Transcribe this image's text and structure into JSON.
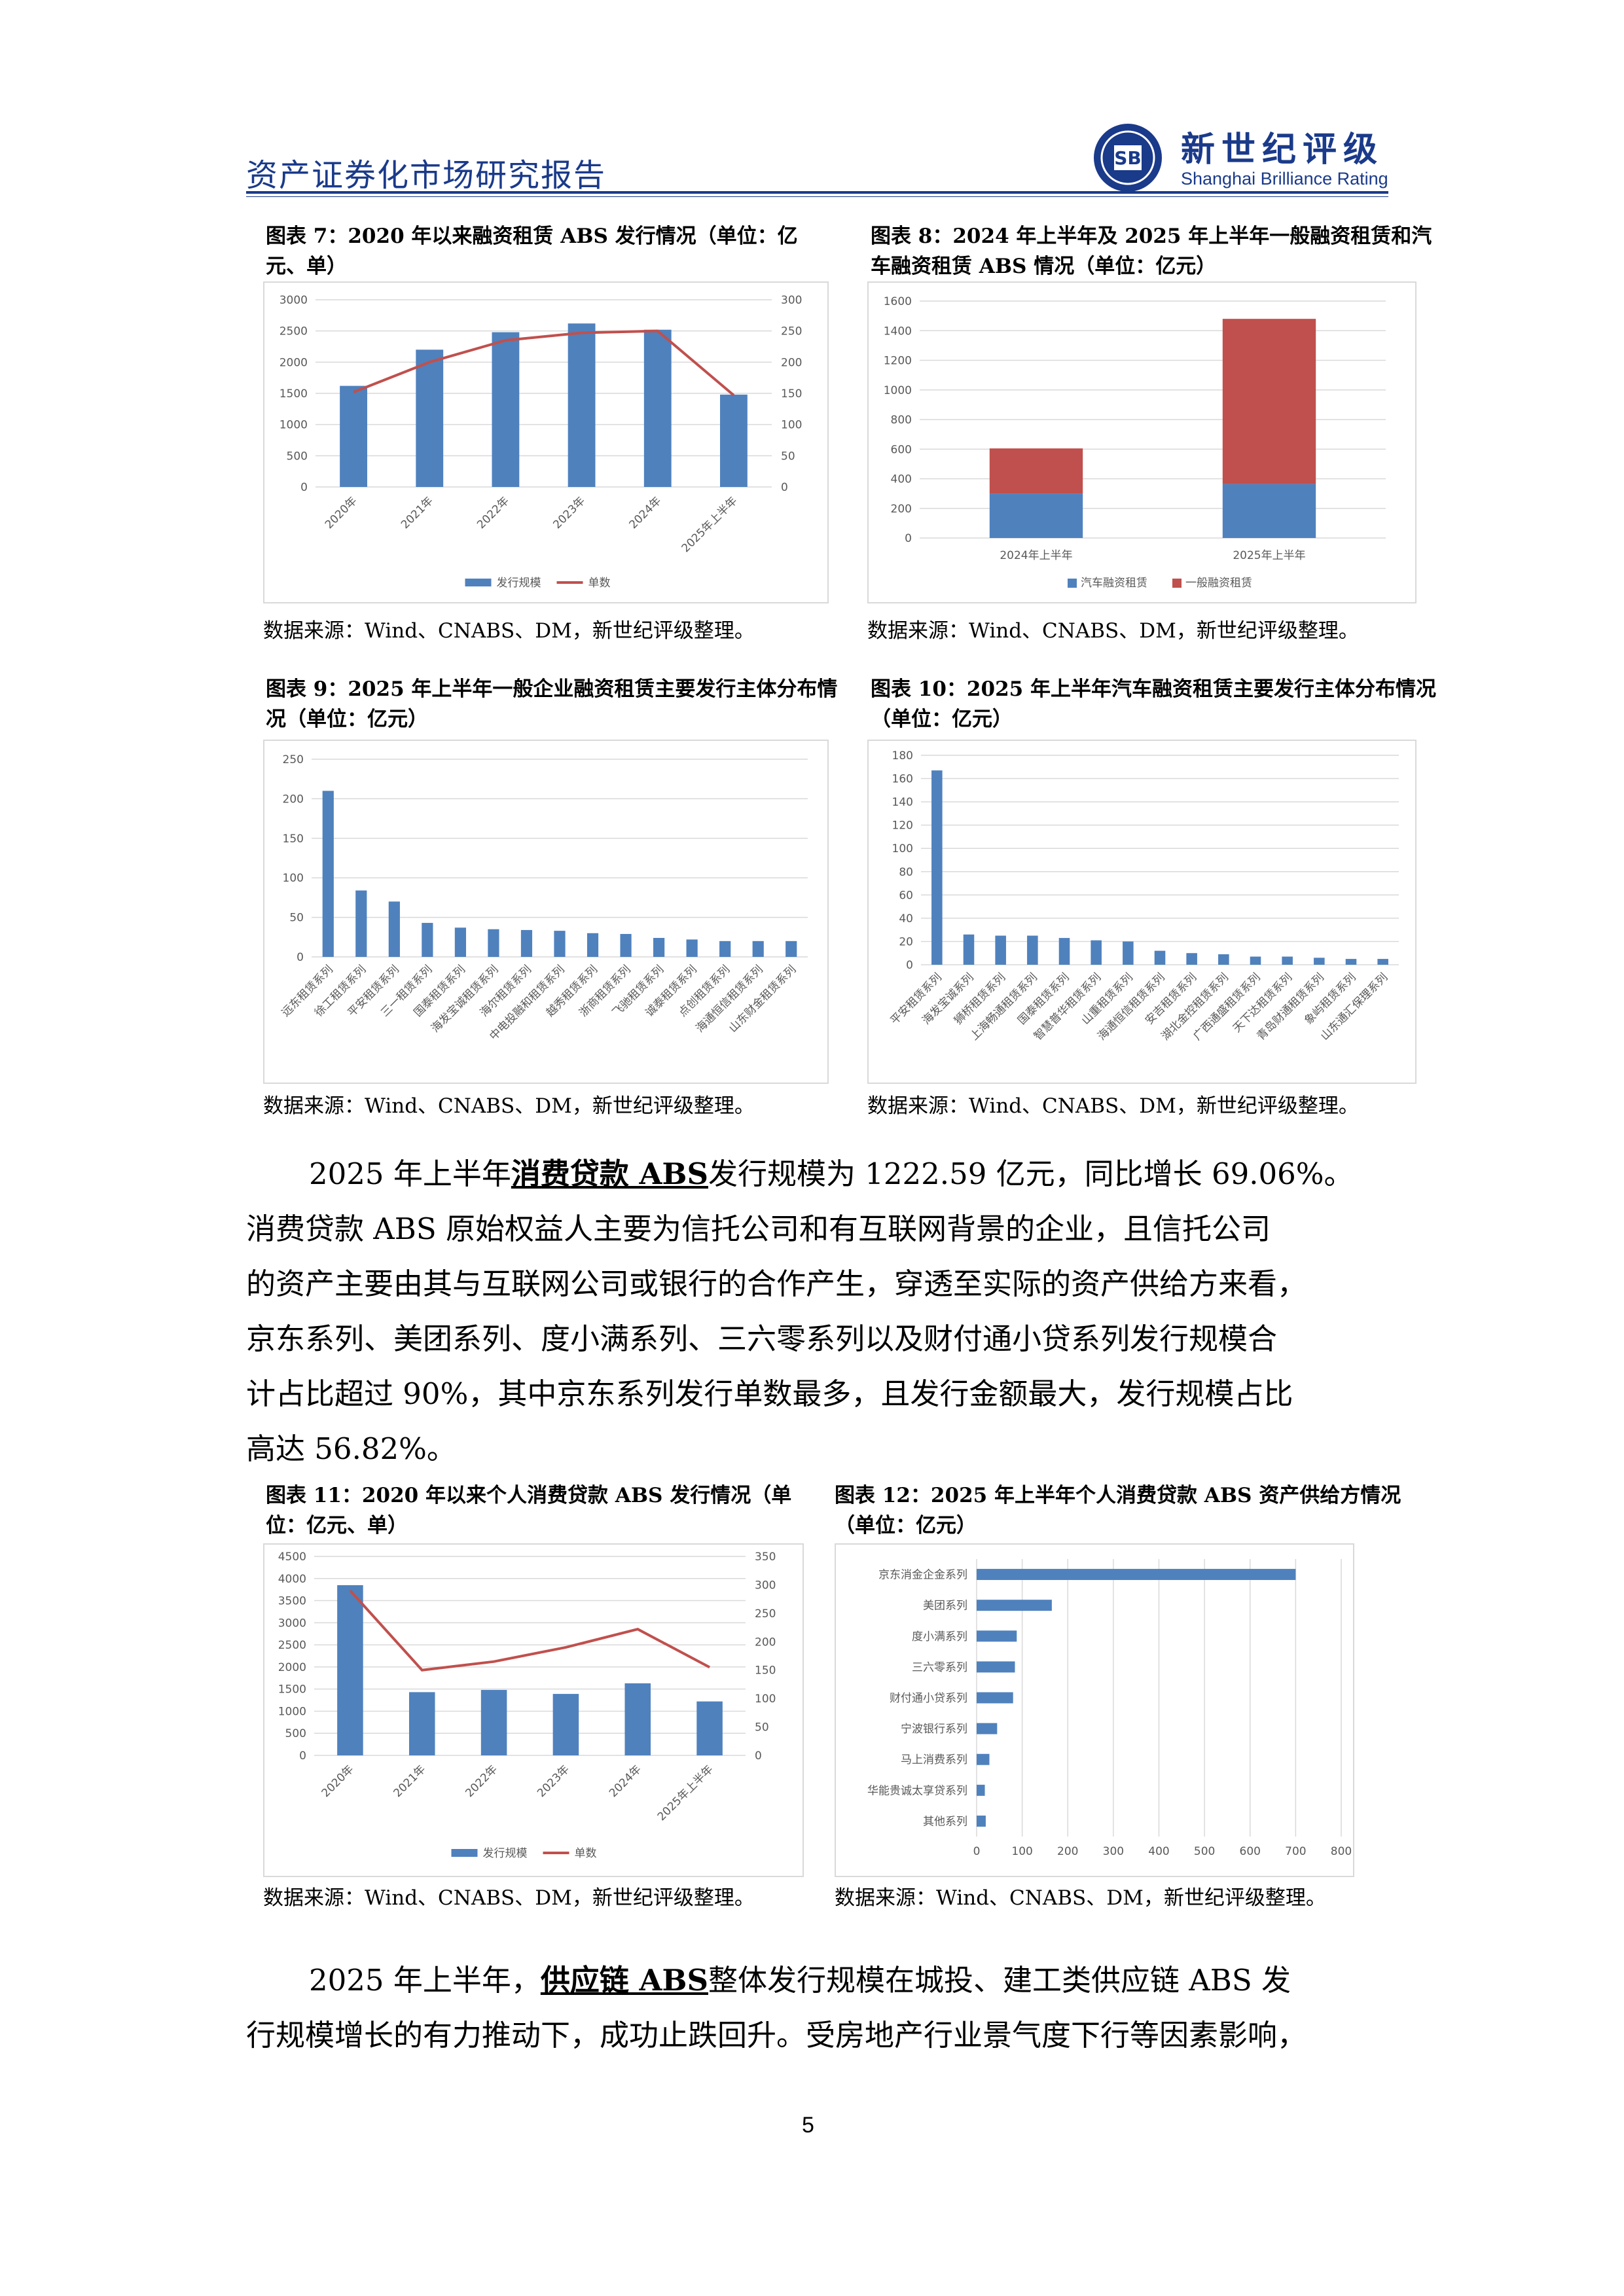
{
  "header": {
    "doc_title": "资产证券化市场研究报告",
    "logo_cn": "新世纪评级",
    "logo_en": "Shanghai Brilliance Rating"
  },
  "colors": {
    "bar_blue": "#4f81bd",
    "bar_red": "#c0504d",
    "line_red": "#c0504d",
    "brand": "#1a3a8a"
  },
  "figures": [
    {
      "caption": "图表 7：2020 年以来融资租赁 ABS 发行情况（单位：亿元、单）",
      "source": "数据来源：Wind、CNABS、DM，新世纪评级整理。"
    },
    {
      "caption": "图表 8：2024 年上半年及 2025 年上半年一般融资租赁和汽车融资租赁 ABS 情况（单位：亿元）",
      "source": "数据来源：Wind、CNABS、DM，新世纪评级整理。"
    },
    {
      "caption": "图表 9：2025 年上半年一般企业融资租赁主要发行主体分布情况（单位：亿元）",
      "source": "数据来源：Wind、CNABS、DM，新世纪评级整理。"
    },
    {
      "caption": "图表 10：2025 年上半年汽车融资租赁主要发行主体分布情况（单位：亿元）",
      "source": "数据来源：Wind、CNABS、DM，新世纪评级整理。"
    },
    {
      "caption": "图表 11：2020 年以来个人消费贷款 ABS 发行情况（单位：亿元、单）",
      "source": "数据来源：Wind、CNABS、DM，新世纪评级整理。"
    },
    {
      "caption": "图表 12：2025 年上半年个人消费贷款 ABS 资产供给方情况（单位：亿元）",
      "source": "数据来源：Wind、CNABS、DM，新世纪评级整理。"
    }
  ],
  "paragraph1": {
    "line1_pre": "2025 年上半年",
    "line1_ul": "消费贷款 ABS",
    "line1_post": "发行规模为 1222.59 亿元，同比增长 69.06%。",
    "line2": "消费贷款 ABS 原始权益人主要为信托公司和有互联网背景的企业，且信托公司",
    "line3": "的资产主要由其与互联网公司或银行的合作产生，穿透至实际的资产供给方来看，",
    "line4": "京东系列、美团系列、度小满系列、三六零系列以及财付通小贷系列发行规模合",
    "line5": "计占比超过 90%，其中京东系列发行单数最多，且发行金额最大，发行规模占比",
    "line6": "高达 56.82%。"
  },
  "paragraph2": {
    "line1_pre": "2025 年上半年，",
    "line1_ul": "供应链 ABS",
    "line1_post": "整体发行规模在城投、建工类供应链 ABS 发",
    "line2": "行规模增长的有力推动下，成功止跌回升。受房地产行业景气度下行等因素影响，"
  },
  "page_number": "5",
  "chart_data": [
    {
      "type": "bar+line",
      "title": "图表 7：2020 年以来融资租赁 ABS 发行情况（单位：亿元、单）",
      "categories": [
        "2020年",
        "2021年",
        "2022年",
        "2023年",
        "2024年",
        "2025年上半年"
      ],
      "series": [
        {
          "name": "发行规模",
          "type": "bar",
          "axis": "left",
          "values": [
            1620,
            2200,
            2480,
            2620,
            2520,
            1480
          ]
        },
        {
          "name": "单数",
          "type": "line",
          "axis": "right",
          "values": [
            152,
            200,
            235,
            247,
            250,
            147
          ]
        }
      ],
      "ylim_left": [
        0,
        3000
      ],
      "yticks_left": [
        0,
        500,
        1000,
        1500,
        2000,
        2500,
        3000
      ],
      "ylim_right": [
        0,
        300
      ],
      "yticks_right": [
        0,
        50,
        100,
        150,
        200,
        250,
        300
      ],
      "legend": "bottom",
      "grid": true
    },
    {
      "type": "stacked-bar",
      "title": "图表 8：2024 年上半年及 2025 年上半年一般融资租赁和汽车融资租赁 ABS 情况（单位：亿元）",
      "categories": [
        "2024年上半年",
        "2025年上半年"
      ],
      "series": [
        {
          "name": "汽车融资租赁",
          "values": [
            300,
            365
          ]
        },
        {
          "name": "一般融资租赁",
          "values": [
            305,
            1115
          ]
        }
      ],
      "ylim": [
        0,
        1600
      ],
      "yticks": [
        0,
        200,
        400,
        600,
        800,
        1000,
        1200,
        1400,
        1600
      ],
      "legend": "bottom",
      "grid": true
    },
    {
      "type": "bar",
      "title": "图表 9：2025 年上半年一般企业融资租赁主要发行主体分布情况（单位：亿元）",
      "categories": [
        "远东租赁系列",
        "徐工租赁系列",
        "平安租赁系列",
        "三一租赁系列",
        "国泰租赁系列",
        "海发宝诚租赁系列",
        "海尔租赁系列",
        "中电投融和租赁系列",
        "越秀租赁系列",
        "浙商租赁系列",
        "飞驰租赁系列",
        "诚泰租赁系列",
        "点创租赁系列",
        "海通恒信租赁系列",
        "山东财金租赁系列"
      ],
      "values": [
        210,
        84,
        70,
        43,
        37,
        35,
        34,
        33,
        30,
        29,
        24,
        22,
        20,
        20,
        20
      ],
      "ylim": [
        0,
        250
      ],
      "yticks": [
        0,
        50,
        100,
        150,
        200,
        250
      ],
      "grid": true
    },
    {
      "type": "bar",
      "title": "图表 10：2025 年上半年汽车融资租赁主要发行主体分布情况（单位：亿元）",
      "categories": [
        "平安租赁系列",
        "海发宝诚系列",
        "狮桥租赁系列",
        "上海畅通租赁系列",
        "国泰租赁系列",
        "智慧普华租赁系列",
        "山重租赁系列",
        "海通恒信租赁系列",
        "安吉租赁系列",
        "湖北金控租赁系列",
        "广西通盛租赁系列",
        "天下达租赁系列",
        "青岛财通租赁系列",
        "象屿租赁系列",
        "山东通汇保理系列"
      ],
      "values": [
        167,
        26,
        25,
        25,
        23,
        21,
        20,
        12,
        10,
        9,
        7,
        7,
        6,
        5,
        5
      ],
      "ylim": [
        0,
        180
      ],
      "yticks": [
        0,
        20,
        40,
        60,
        80,
        100,
        120,
        140,
        160,
        180
      ],
      "grid": true
    },
    {
      "type": "bar+line",
      "title": "图表 11：2020 年以来个人消费贷款 ABS 发行情况（单位：亿元、单）",
      "categories": [
        "2020年",
        "2021年",
        "2022年",
        "2023年",
        "2024年",
        "2025年上半年"
      ],
      "series": [
        {
          "name": "发行规模",
          "type": "bar",
          "axis": "left",
          "values": [
            3850,
            1430,
            1480,
            1390,
            1630,
            1220
          ]
        },
        {
          "name": "单数",
          "type": "line",
          "axis": "right",
          "values": [
            290,
            150,
            165,
            190,
            222,
            155
          ]
        }
      ],
      "ylim_left": [
        0,
        4500
      ],
      "yticks_left": [
        0,
        500,
        1000,
        1500,
        2000,
        2500,
        3000,
        3500,
        4000,
        4500
      ],
      "ylim_right": [
        0,
        350
      ],
      "yticks_right": [
        0,
        50,
        100,
        150,
        200,
        250,
        300,
        350
      ],
      "legend": "bottom",
      "grid": true
    },
    {
      "type": "bar-horizontal",
      "title": "图表 12：2025 年上半年个人消费贷款 ABS 资产供给方情况（单位：亿元）",
      "categories": [
        "京东消金企金系列",
        "美团系列",
        "度小满系列",
        "三六零系列",
        "财付通小贷系列",
        "宁波银行系列",
        "马上消费系列",
        "华能贵诚太享贷系列",
        "其他系列"
      ],
      "values": [
        700,
        165,
        88,
        84,
        80,
        45,
        28,
        18,
        20
      ],
      "xlim": [
        0,
        800
      ],
      "xticks": [
        0,
        100,
        200,
        300,
        400,
        500,
        600,
        700,
        800
      ],
      "grid": true
    }
  ]
}
